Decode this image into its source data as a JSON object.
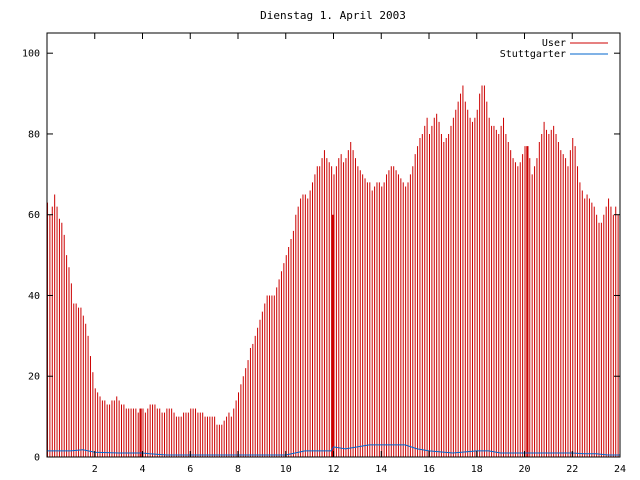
{
  "chart_data": {
    "type": "bar",
    "title": "Dienstag 1. April 2003",
    "xlabel": "",
    "ylabel": "",
    "xlim": [
      0,
      24
    ],
    "ylim": [
      0,
      105
    ],
    "x_ticks": [
      "2",
      "4",
      "6",
      "8",
      "10",
      "12",
      "14",
      "16",
      "18",
      "20",
      "22",
      "24"
    ],
    "y_ticks": [
      "0",
      "20",
      "40",
      "60",
      "80",
      "100"
    ],
    "legend": "top-right",
    "grid": false,
    "series": [
      {
        "name": "User",
        "type": "impulse",
        "color": "#cc0000",
        "points": [
          [
            0.0,
            63
          ],
          [
            0.1,
            60
          ],
          [
            0.2,
            62
          ],
          [
            0.3,
            65
          ],
          [
            0.4,
            62
          ],
          [
            0.5,
            59
          ],
          [
            0.6,
            58
          ],
          [
            0.7,
            55
          ],
          [
            0.8,
            50
          ],
          [
            0.9,
            47
          ],
          [
            1.0,
            43
          ],
          [
            1.1,
            38
          ],
          [
            1.2,
            38
          ],
          [
            1.3,
            37
          ],
          [
            1.4,
            37
          ],
          [
            1.5,
            35
          ],
          [
            1.6,
            33
          ],
          [
            1.7,
            30
          ],
          [
            1.8,
            25
          ],
          [
            1.9,
            21
          ],
          [
            2.0,
            17
          ],
          [
            2.1,
            16
          ],
          [
            2.2,
            15
          ],
          [
            2.3,
            14
          ],
          [
            2.4,
            14
          ],
          [
            2.5,
            13
          ],
          [
            2.6,
            13
          ],
          [
            2.7,
            14
          ],
          [
            2.8,
            14
          ],
          [
            2.9,
            15
          ],
          [
            3.0,
            14
          ],
          [
            3.1,
            13
          ],
          [
            3.2,
            13
          ],
          [
            3.3,
            12
          ],
          [
            3.4,
            12
          ],
          [
            3.5,
            12
          ],
          [
            3.6,
            12
          ],
          [
            3.7,
            12
          ],
          [
            3.8,
            11
          ],
          [
            3.9,
            11
          ],
          [
            4.0,
            12
          ],
          [
            4.1,
            11
          ],
          [
            4.2,
            12
          ],
          [
            4.3,
            13
          ],
          [
            4.4,
            13
          ],
          [
            4.5,
            13
          ],
          [
            4.6,
            12
          ],
          [
            4.7,
            12
          ],
          [
            4.8,
            11
          ],
          [
            4.9,
            11
          ],
          [
            5.0,
            12
          ],
          [
            5.1,
            12
          ],
          [
            5.2,
            12
          ],
          [
            5.3,
            11
          ],
          [
            5.4,
            10
          ],
          [
            5.5,
            10
          ],
          [
            5.6,
            10
          ],
          [
            5.7,
            11
          ],
          [
            5.8,
            11
          ],
          [
            5.9,
            11
          ],
          [
            6.0,
            12
          ],
          [
            6.1,
            12
          ],
          [
            6.2,
            12
          ],
          [
            6.3,
            11
          ],
          [
            6.4,
            11
          ],
          [
            6.5,
            11
          ],
          [
            6.6,
            10
          ],
          [
            6.7,
            10
          ],
          [
            6.8,
            10
          ],
          [
            6.9,
            10
          ],
          [
            7.0,
            10
          ],
          [
            7.1,
            8
          ],
          [
            7.2,
            8
          ],
          [
            7.3,
            8
          ],
          [
            7.4,
            9
          ],
          [
            7.5,
            10
          ],
          [
            7.6,
            11
          ],
          [
            7.7,
            10
          ],
          [
            7.8,
            12
          ],
          [
            7.9,
            14
          ],
          [
            8.0,
            16
          ],
          [
            8.1,
            18
          ],
          [
            8.2,
            20
          ],
          [
            8.3,
            22
          ],
          [
            8.4,
            24
          ],
          [
            8.5,
            27
          ],
          [
            8.6,
            28
          ],
          [
            8.7,
            30
          ],
          [
            8.8,
            32
          ],
          [
            8.9,
            34
          ],
          [
            9.0,
            36
          ],
          [
            9.1,
            38
          ],
          [
            9.2,
            40
          ],
          [
            9.3,
            40
          ],
          [
            9.4,
            40
          ],
          [
            9.5,
            40
          ],
          [
            9.6,
            42
          ],
          [
            9.7,
            44
          ],
          [
            9.8,
            46
          ],
          [
            9.9,
            48
          ],
          [
            10.0,
            50
          ],
          [
            10.1,
            52
          ],
          [
            10.2,
            54
          ],
          [
            10.3,
            56
          ],
          [
            10.4,
            60
          ],
          [
            10.5,
            62
          ],
          [
            10.6,
            64
          ],
          [
            10.7,
            65
          ],
          [
            10.8,
            65
          ],
          [
            10.9,
            64
          ],
          [
            11.0,
            66
          ],
          [
            11.1,
            68
          ],
          [
            11.2,
            70
          ],
          [
            11.3,
            72
          ],
          [
            11.4,
            72
          ],
          [
            11.5,
            74
          ],
          [
            11.6,
            76
          ],
          [
            11.7,
            74
          ],
          [
            11.8,
            73
          ],
          [
            11.9,
            72
          ],
          [
            12.0,
            70
          ],
          [
            12.1,
            72
          ],
          [
            12.2,
            74
          ],
          [
            12.3,
            75
          ],
          [
            12.4,
            73
          ],
          [
            12.5,
            74
          ],
          [
            12.6,
            76
          ],
          [
            12.7,
            78
          ],
          [
            12.8,
            76
          ],
          [
            12.9,
            74
          ],
          [
            13.0,
            72
          ],
          [
            13.1,
            71
          ],
          [
            13.2,
            70
          ],
          [
            13.3,
            69
          ],
          [
            13.4,
            68
          ],
          [
            13.5,
            68
          ],
          [
            13.6,
            66
          ],
          [
            13.7,
            67
          ],
          [
            13.8,
            68
          ],
          [
            13.9,
            68
          ],
          [
            14.0,
            67
          ],
          [
            14.1,
            68
          ],
          [
            14.2,
            70
          ],
          [
            14.3,
            71
          ],
          [
            14.4,
            72
          ],
          [
            14.5,
            72
          ],
          [
            14.6,
            71
          ],
          [
            14.7,
            70
          ],
          [
            14.8,
            69
          ],
          [
            14.9,
            68
          ],
          [
            15.0,
            67
          ],
          [
            15.1,
            68
          ],
          [
            15.2,
            70
          ],
          [
            15.3,
            72
          ],
          [
            15.4,
            75
          ],
          [
            15.5,
            77
          ],
          [
            15.6,
            79
          ],
          [
            15.7,
            80
          ],
          [
            15.8,
            82
          ],
          [
            15.9,
            84
          ],
          [
            16.0,
            80
          ],
          [
            16.1,
            82
          ],
          [
            16.2,
            84
          ],
          [
            16.3,
            85
          ],
          [
            16.4,
            83
          ],
          [
            16.5,
            80
          ],
          [
            16.6,
            78
          ],
          [
            16.7,
            79
          ],
          [
            16.8,
            80
          ],
          [
            16.9,
            82
          ],
          [
            17.0,
            84
          ],
          [
            17.1,
            86
          ],
          [
            17.2,
            88
          ],
          [
            17.3,
            90
          ],
          [
            17.4,
            92
          ],
          [
            17.5,
            88
          ],
          [
            17.6,
            86
          ],
          [
            17.7,
            84
          ],
          [
            17.8,
            83
          ],
          [
            17.9,
            84
          ],
          [
            18.0,
            86
          ],
          [
            18.1,
            90
          ],
          [
            18.2,
            92
          ],
          [
            18.3,
            92
          ],
          [
            18.4,
            88
          ],
          [
            18.5,
            84
          ],
          [
            18.6,
            82
          ],
          [
            18.7,
            82
          ],
          [
            18.8,
            81
          ],
          [
            18.9,
            80
          ],
          [
            19.0,
            82
          ],
          [
            19.1,
            84
          ],
          [
            19.2,
            80
          ],
          [
            19.3,
            78
          ],
          [
            19.4,
            76
          ],
          [
            19.5,
            74
          ],
          [
            19.6,
            73
          ],
          [
            19.7,
            72
          ],
          [
            19.8,
            73
          ],
          [
            19.9,
            75
          ],
          [
            20.0,
            77
          ],
          [
            20.1,
            76
          ],
          [
            20.2,
            74
          ],
          [
            20.3,
            70
          ],
          [
            20.4,
            72
          ],
          [
            20.5,
            74
          ],
          [
            20.6,
            78
          ],
          [
            20.7,
            80
          ],
          [
            20.8,
            83
          ],
          [
            20.9,
            81
          ],
          [
            21.0,
            80
          ],
          [
            21.1,
            81
          ],
          [
            21.2,
            82
          ],
          [
            21.3,
            80
          ],
          [
            21.4,
            78
          ],
          [
            21.5,
            76
          ],
          [
            21.6,
            75
          ],
          [
            21.7,
            74
          ],
          [
            21.8,
            72
          ],
          [
            21.9,
            76
          ],
          [
            22.0,
            79
          ],
          [
            22.1,
            77
          ],
          [
            22.2,
            72
          ],
          [
            22.3,
            68
          ],
          [
            22.4,
            66
          ],
          [
            22.5,
            64
          ],
          [
            22.6,
            65
          ],
          [
            22.7,
            64
          ],
          [
            22.8,
            63
          ],
          [
            22.9,
            62
          ],
          [
            23.0,
            60
          ],
          [
            23.1,
            58
          ],
          [
            23.2,
            58
          ],
          [
            23.3,
            60
          ],
          [
            23.4,
            62
          ],
          [
            23.5,
            64
          ],
          [
            23.6,
            62
          ],
          [
            23.7,
            60
          ],
          [
            23.8,
            62
          ],
          [
            23.9,
            60
          ]
        ],
        "emphasized_points": [
          [
            3.9,
            12
          ],
          [
            11.95,
            60
          ],
          [
            20.1,
            77
          ]
        ]
      },
      {
        "name": "Stuttgarter",
        "type": "line",
        "color": "#0066cc",
        "points": [
          [
            0.0,
            1.5
          ],
          [
            1.0,
            1.5
          ],
          [
            1.5,
            1.8
          ],
          [
            2.0,
            1.2
          ],
          [
            3.0,
            1.0
          ],
          [
            4.0,
            1.0
          ],
          [
            4.3,
            0.8
          ],
          [
            5.0,
            0.5
          ],
          [
            6.0,
            0.5
          ],
          [
            7.0,
            0.5
          ],
          [
            8.0,
            0.5
          ],
          [
            9.0,
            0.5
          ],
          [
            10.0,
            0.5
          ],
          [
            10.8,
            1.5
          ],
          [
            11.9,
            1.5
          ],
          [
            12.0,
            2.5
          ],
          [
            12.5,
            2.0
          ],
          [
            13.0,
            2.5
          ],
          [
            13.5,
            3.0
          ],
          [
            14.0,
            3.0
          ],
          [
            15.0,
            3.0
          ],
          [
            15.5,
            2.0
          ],
          [
            16.0,
            1.5
          ],
          [
            17.0,
            1.0
          ],
          [
            18.0,
            1.5
          ],
          [
            18.5,
            1.5
          ],
          [
            19.0,
            1.0
          ],
          [
            20.0,
            1.0
          ],
          [
            21.0,
            1.0
          ],
          [
            22.0,
            1.0
          ],
          [
            22.5,
            0.8
          ],
          [
            23.0,
            0.8
          ],
          [
            23.5,
            0.5
          ],
          [
            24.0,
            0.5
          ]
        ]
      }
    ]
  }
}
